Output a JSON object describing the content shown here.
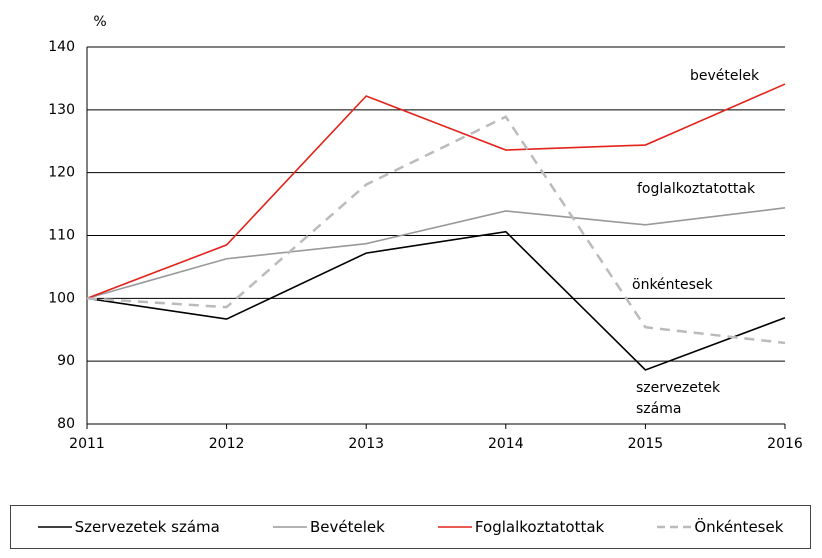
{
  "chart_data": {
    "type": "line",
    "y_label": "%",
    "x": [
      2011,
      2012,
      2013,
      2014,
      2015,
      2016
    ],
    "xlim": [
      2011,
      2016
    ],
    "xticks": [
      2011,
      2012,
      2013,
      2014,
      2015,
      2016
    ],
    "ylim": [
      80,
      140
    ],
    "yticks": [
      80,
      90,
      100,
      110,
      120,
      130,
      140
    ],
    "grid": true,
    "series": [
      {
        "name": "Szervezetek száma",
        "color": "#000000",
        "dashed": false,
        "values": [
          100,
          96.7,
          107.2,
          110.6,
          88.6,
          96.9
        ]
      },
      {
        "name": "Bevételek",
        "color": "#999999",
        "dashed": false,
        "values": [
          100,
          106.3,
          108.7,
          113.9,
          111.7,
          114.4
        ]
      },
      {
        "name": "Foglalkoztatottak",
        "color": "#e2231a",
        "dashed": false,
        "values": [
          100,
          108.5,
          132.2,
          123.6,
          124.4,
          134.1
        ]
      },
      {
        "name": "Önkéntesek",
        "color": "#bbbbbb",
        "dashed": true,
        "values": [
          100,
          98.6,
          118.1,
          128.9,
          95.4,
          92.9
        ]
      }
    ],
    "annotations": [
      "bevételek",
      "foglalkoztatottak",
      "önkéntesek",
      "szervezetek száma"
    ]
  }
}
